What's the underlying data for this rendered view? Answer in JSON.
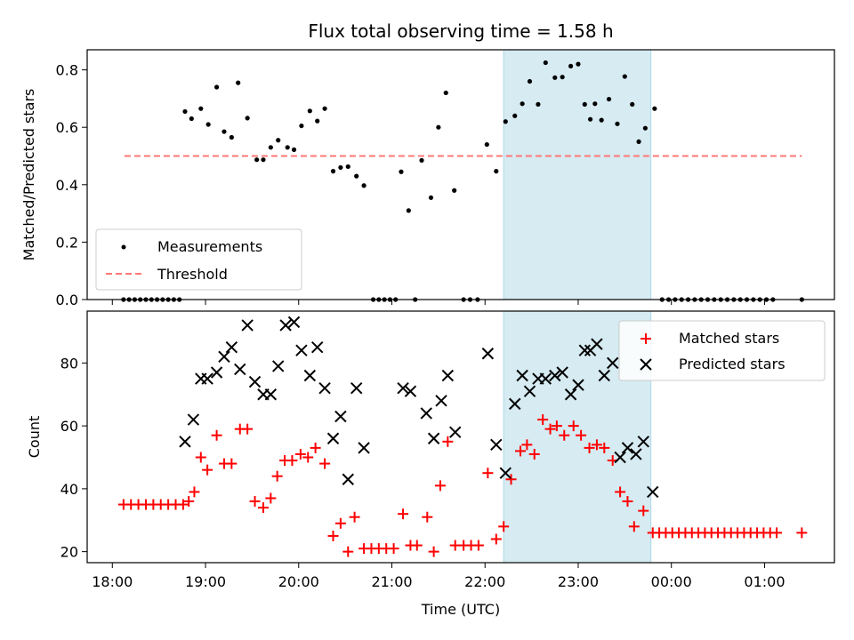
{
  "chart_data": [
    {
      "type": "scatter",
      "title": "Flux total observing time = 1.58 h",
      "xlabel": "",
      "ylabel": "Matched/Predicted stars",
      "ylim": [
        0,
        0.87
      ],
      "yticks": [
        0.0,
        0.2,
        0.4,
        0.6,
        0.8
      ],
      "ytick_labels": [
        "0.0",
        "0.2",
        "0.4",
        "0.6",
        "0.8"
      ],
      "xlim": [
        -0.27,
        7.75
      ],
      "legend_position": "lower-left",
      "highlight_span": {
        "x_start": 4.2,
        "x_end": 5.78,
        "color": "#add8e6"
      },
      "threshold": {
        "name": "Threshold",
        "value": 0.5,
        "x_range": [
          0.13,
          7.4
        ],
        "color": "#ff7777"
      },
      "series": [
        {
          "name": "Measurements",
          "color": "#000000",
          "marker": "dot",
          "points": [
            [
              0.12,
              0
            ],
            [
              0.18,
              0
            ],
            [
              0.24,
              0
            ],
            [
              0.3,
              0
            ],
            [
              0.36,
              0
            ],
            [
              0.42,
              0
            ],
            [
              0.48,
              0
            ],
            [
              0.54,
              0
            ],
            [
              0.6,
              0
            ],
            [
              0.66,
              0
            ],
            [
              0.72,
              0
            ],
            [
              0.78,
              0.655
            ],
            [
              0.85,
              0.63
            ],
            [
              0.95,
              0.665
            ],
            [
              1.03,
              0.61
            ],
            [
              1.12,
              0.74
            ],
            [
              1.2,
              0.585
            ],
            [
              1.28,
              0.565
            ],
            [
              1.35,
              0.755
            ],
            [
              1.45,
              0.632
            ],
            [
              1.55,
              0.487
            ],
            [
              1.62,
              0.487
            ],
            [
              1.7,
              0.53
            ],
            [
              1.78,
              0.555
            ],
            [
              1.88,
              0.53
            ],
            [
              1.95,
              0.522
            ],
            [
              2.03,
              0.605
            ],
            [
              2.12,
              0.657
            ],
            [
              2.2,
              0.622
            ],
            [
              2.28,
              0.665
            ],
            [
              2.37,
              0.447
            ],
            [
              2.45,
              0.46
            ],
            [
              2.53,
              0.463
            ],
            [
              2.62,
              0.43
            ],
            [
              2.7,
              0.397
            ],
            [
              2.8,
              0
            ],
            [
              2.86,
              0
            ],
            [
              2.92,
              0
            ],
            [
              2.98,
              0
            ],
            [
              3.04,
              0
            ],
            [
              3.1,
              0.445
            ],
            [
              3.18,
              0.31
            ],
            [
              3.25,
              0
            ],
            [
              3.32,
              0.485
            ],
            [
              3.42,
              0.355
            ],
            [
              3.5,
              0.6
            ],
            [
              3.58,
              0.72
            ],
            [
              3.67,
              0.38
            ],
            [
              3.77,
              0
            ],
            [
              3.84,
              0
            ],
            [
              3.92,
              0
            ],
            [
              4.02,
              0.54
            ],
            [
              4.12,
              0.447
            ],
            [
              4.22,
              0.62
            ],
            [
              4.32,
              0.64
            ],
            [
              4.4,
              0.682
            ],
            [
              4.48,
              0.76
            ],
            [
              4.57,
              0.68
            ],
            [
              4.65,
              0.825
            ],
            [
              4.75,
              0.773
            ],
            [
              4.83,
              0.775
            ],
            [
              4.92,
              0.813
            ],
            [
              5.0,
              0.82
            ],
            [
              5.07,
              0.68
            ],
            [
              5.13,
              0.628
            ],
            [
              5.18,
              0.682
            ],
            [
              5.25,
              0.625
            ],
            [
              5.33,
              0.698
            ],
            [
              5.42,
              0.612
            ],
            [
              5.5,
              0.777
            ],
            [
              5.58,
              0.68
            ],
            [
              5.65,
              0.55
            ],
            [
              5.72,
              0.597
            ],
            [
              5.82,
              0.665
            ],
            [
              5.9,
              0
            ],
            [
              5.97,
              0
            ],
            [
              6.04,
              0
            ],
            [
              6.11,
              0
            ],
            [
              6.18,
              0
            ],
            [
              6.25,
              0
            ],
            [
              6.32,
              0
            ],
            [
              6.39,
              0
            ],
            [
              6.46,
              0
            ],
            [
              6.53,
              0
            ],
            [
              6.6,
              0
            ],
            [
              6.67,
              0
            ],
            [
              6.74,
              0
            ],
            [
              6.81,
              0
            ],
            [
              6.88,
              0
            ],
            [
              6.95,
              0
            ],
            [
              7.02,
              0
            ],
            [
              7.09,
              0
            ],
            [
              7.4,
              0
            ]
          ]
        }
      ]
    },
    {
      "type": "scatter",
      "title": "",
      "xlabel": "Time (UTC)",
      "ylabel": "Count",
      "ylim": [
        16.5,
        96.5
      ],
      "yticks": [
        20,
        40,
        60,
        80
      ],
      "ytick_labels": [
        "20",
        "40",
        "60",
        "80"
      ],
      "xlim": [
        -0.27,
        7.75
      ],
      "xticks": [
        0,
        1,
        2,
        3,
        4,
        5,
        6,
        7
      ],
      "xtick_labels": [
        "18:00",
        "19:00",
        "20:00",
        "21:00",
        "22:00",
        "23:00",
        "00:00",
        "01:00"
      ],
      "legend_position": "upper-right",
      "highlight_span": {
        "x_start": 4.2,
        "x_end": 5.78,
        "color": "#add8e6"
      },
      "series": [
        {
          "name": "Matched stars",
          "color": "#ff0000",
          "marker": "plus",
          "points": [
            [
              0.12,
              35
            ],
            [
              0.2,
              35
            ],
            [
              0.28,
              35
            ],
            [
              0.36,
              35
            ],
            [
              0.44,
              35
            ],
            [
              0.52,
              35
            ],
            [
              0.6,
              35
            ],
            [
              0.68,
              35
            ],
            [
              0.76,
              35
            ],
            [
              0.82,
              36
            ],
            [
              0.88,
              39
            ],
            [
              0.95,
              50
            ],
            [
              1.02,
              46
            ],
            [
              1.12,
              57
            ],
            [
              1.2,
              48
            ],
            [
              1.28,
              48
            ],
            [
              1.37,
              59
            ],
            [
              1.45,
              59
            ],
            [
              1.53,
              36
            ],
            [
              1.62,
              34
            ],
            [
              1.7,
              37
            ],
            [
              1.77,
              44
            ],
            [
              1.85,
              49
            ],
            [
              1.93,
              49
            ],
            [
              2.02,
              51
            ],
            [
              2.1,
              50
            ],
            [
              2.18,
              53
            ],
            [
              2.28,
              48
            ],
            [
              2.37,
              25
            ],
            [
              2.45,
              29
            ],
            [
              2.53,
              20
            ],
            [
              2.6,
              31
            ],
            [
              2.7,
              21
            ],
            [
              2.78,
              21
            ],
            [
              2.86,
              21
            ],
            [
              2.94,
              21
            ],
            [
              3.02,
              21
            ],
            [
              3.12,
              32
            ],
            [
              3.2,
              22
            ],
            [
              3.27,
              22
            ],
            [
              3.38,
              31
            ],
            [
              3.45,
              20
            ],
            [
              3.52,
              41
            ],
            [
              3.6,
              55
            ],
            [
              3.68,
              22
            ],
            [
              3.77,
              22
            ],
            [
              3.85,
              22
            ],
            [
              3.93,
              22
            ],
            [
              4.03,
              45
            ],
            [
              4.12,
              24
            ],
            [
              4.2,
              28
            ],
            [
              4.28,
              43
            ],
            [
              4.38,
              52
            ],
            [
              4.45,
              54
            ],
            [
              4.53,
              51
            ],
            [
              4.62,
              62
            ],
            [
              4.7,
              59
            ],
            [
              4.77,
              60
            ],
            [
              4.85,
              57
            ],
            [
              4.95,
              60
            ],
            [
              5.03,
              57
            ],
            [
              5.12,
              53
            ],
            [
              5.2,
              54
            ],
            [
              5.28,
              53
            ],
            [
              5.37,
              49
            ],
            [
              5.45,
              39
            ],
            [
              5.53,
              36
            ],
            [
              5.6,
              28
            ],
            [
              5.7,
              33
            ],
            [
              5.8,
              26
            ],
            [
              5.87,
              26
            ],
            [
              5.94,
              26
            ],
            [
              6.01,
              26
            ],
            [
              6.08,
              26
            ],
            [
              6.15,
              26
            ],
            [
              6.22,
              26
            ],
            [
              6.29,
              26
            ],
            [
              6.36,
              26
            ],
            [
              6.43,
              26
            ],
            [
              6.5,
              26
            ],
            [
              6.57,
              26
            ],
            [
              6.64,
              26
            ],
            [
              6.71,
              26
            ],
            [
              6.78,
              26
            ],
            [
              6.85,
              26
            ],
            [
              6.92,
              26
            ],
            [
              6.99,
              26
            ],
            [
              7.06,
              26
            ],
            [
              7.13,
              26
            ],
            [
              7.4,
              26
            ]
          ]
        },
        {
          "name": "Predicted stars",
          "color": "#000000",
          "marker": "x",
          "points": [
            [
              0.78,
              55
            ],
            [
              0.87,
              62
            ],
            [
              0.95,
              75
            ],
            [
              1.02,
              75
            ],
            [
              1.12,
              77
            ],
            [
              1.2,
              82
            ],
            [
              1.28,
              85
            ],
            [
              1.37,
              78
            ],
            [
              1.45,
              92
            ],
            [
              1.53,
              74
            ],
            [
              1.62,
              70
            ],
            [
              1.7,
              70
            ],
            [
              1.78,
              79
            ],
            [
              1.86,
              92
            ],
            [
              1.95,
              93
            ],
            [
              2.03,
              84
            ],
            [
              2.12,
              76
            ],
            [
              2.2,
              85
            ],
            [
              2.28,
              72
            ],
            [
              2.37,
              56
            ],
            [
              2.45,
              63
            ],
            [
              2.53,
              43
            ],
            [
              2.62,
              72
            ],
            [
              2.7,
              53
            ],
            [
              3.12,
              72
            ],
            [
              3.2,
              71
            ],
            [
              3.37,
              64
            ],
            [
              3.45,
              56
            ],
            [
              3.53,
              68
            ],
            [
              3.6,
              76
            ],
            [
              3.68,
              58
            ],
            [
              4.03,
              83
            ],
            [
              4.12,
              54
            ],
            [
              4.22,
              45
            ],
            [
              4.32,
              67
            ],
            [
              4.4,
              76
            ],
            [
              4.48,
              71
            ],
            [
              4.57,
              75
            ],
            [
              4.65,
              75
            ],
            [
              4.75,
              76
            ],
            [
              4.83,
              77
            ],
            [
              4.92,
              70
            ],
            [
              5.0,
              73
            ],
            [
              5.07,
              84
            ],
            [
              5.13,
              84
            ],
            [
              5.2,
              86
            ],
            [
              5.28,
              76
            ],
            [
              5.37,
              80
            ],
            [
              5.45,
              50
            ],
            [
              5.53,
              53
            ],
            [
              5.62,
              51
            ],
            [
              5.7,
              55
            ],
            [
              5.8,
              39
            ]
          ]
        }
      ]
    }
  ]
}
